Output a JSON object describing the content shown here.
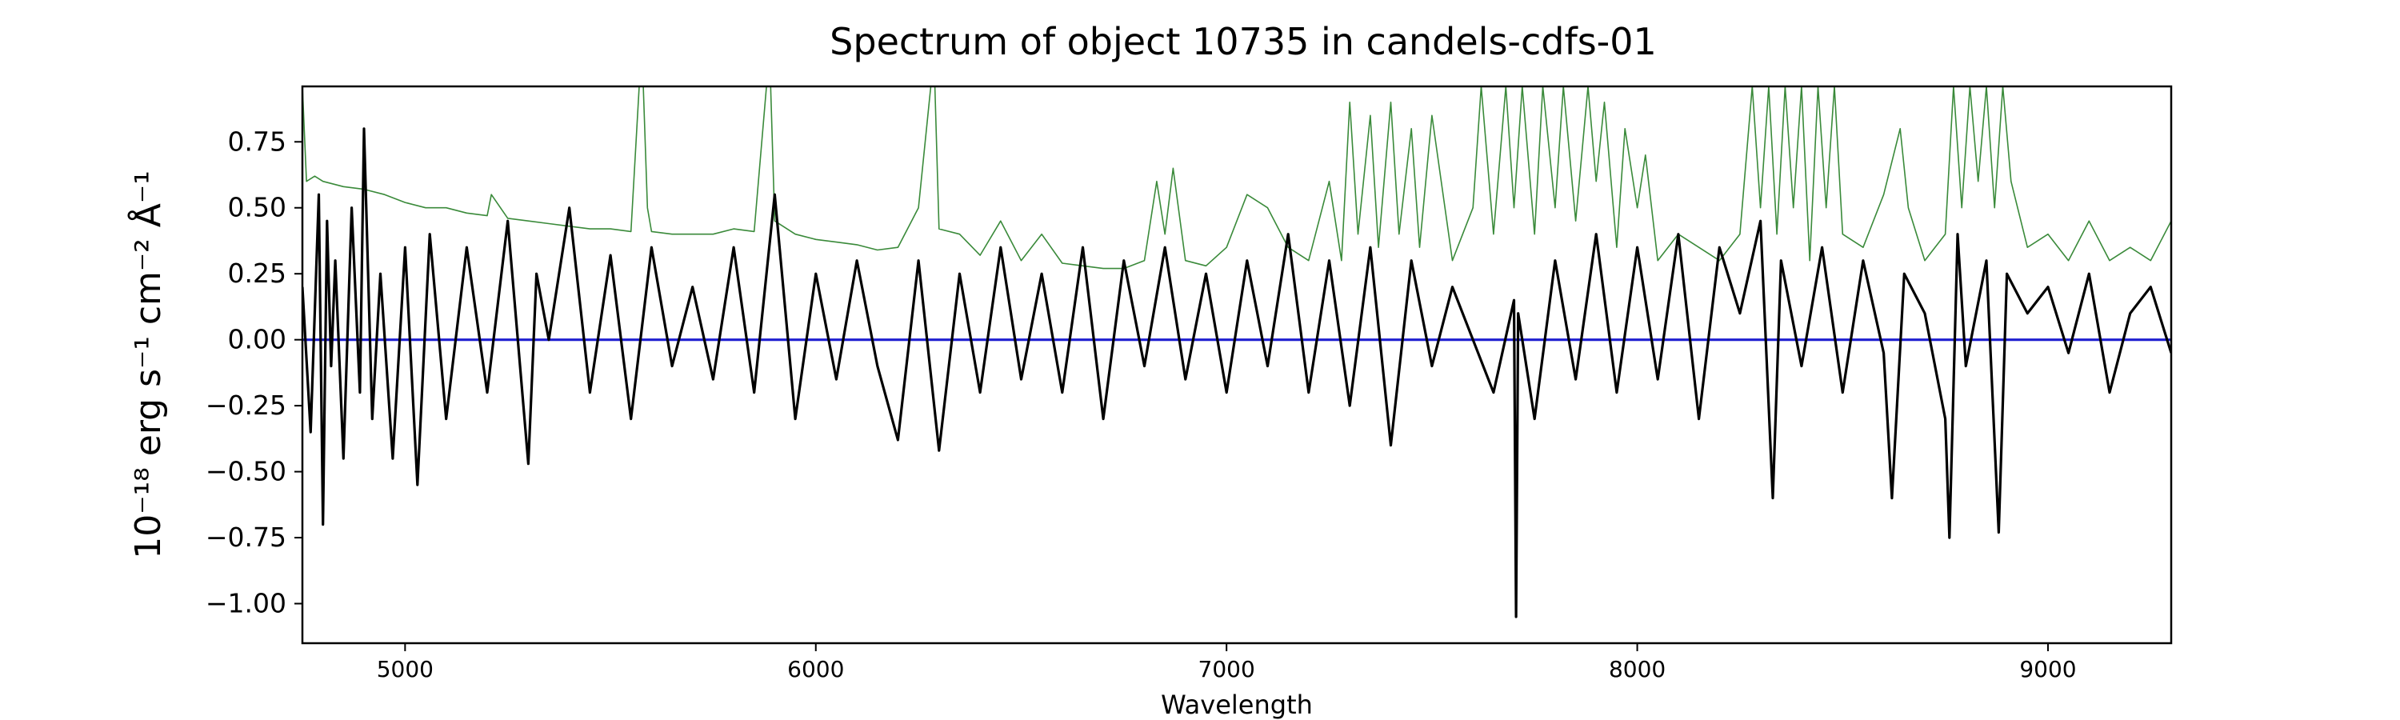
{
  "chart_data": {
    "type": "line",
    "title": "Spectrum of object 10735 in candels-cdfs-01",
    "xlabel": "Wavelength",
    "ylabel": "10⁻¹⁸ erg s⁻¹ cm⁻² Å⁻¹",
    "xlim": [
      4750,
      9300
    ],
    "ylim": [
      -1.15,
      0.96
    ],
    "x_ticks": [
      5000,
      6000,
      7000,
      8000,
      9000
    ],
    "x_tick_labels": [
      "5000",
      "6000",
      "7000",
      "8000",
      "9000"
    ],
    "y_ticks": [
      0.75,
      0.5,
      0.25,
      0.0,
      -0.25,
      -0.5,
      -0.75,
      -1.0
    ],
    "y_tick_labels": [
      "0.75",
      "0.50",
      "0.25",
      "0.00",
      "−0.25",
      "−0.50",
      "−0.75",
      "−1.00"
    ],
    "grid": false,
    "series": [
      {
        "color": "#000000",
        "style": "noisy flux spectrum",
        "x": [
          4750,
          4770,
          4790,
          4800,
          4810,
          4820,
          4830,
          4850,
          4870,
          4890,
          4900,
          4920,
          4940,
          4970,
          5000,
          5030,
          5060,
          5100,
          5150,
          5200,
          5250,
          5300,
          5320,
          5350,
          5400,
          5450,
          5500,
          5550,
          5600,
          5650,
          5700,
          5750,
          5800,
          5850,
          5900,
          5950,
          6000,
          6050,
          6100,
          6150,
          6200,
          6250,
          6300,
          6350,
          6400,
          6450,
          6500,
          6550,
          6600,
          6650,
          6700,
          6750,
          6800,
          6850,
          6900,
          6950,
          7000,
          7050,
          7100,
          7150,
          7200,
          7250,
          7300,
          7350,
          7400,
          7450,
          7500,
          7550,
          7600,
          7650,
          7700,
          7705,
          7710,
          7750,
          7800,
          7850,
          7900,
          7950,
          8000,
          8050,
          8100,
          8150,
          8200,
          8250,
          8300,
          8330,
          8350,
          8400,
          8450,
          8500,
          8550,
          8600,
          8620,
          8650,
          8700,
          8750,
          8760,
          8780,
          8800,
          8850,
          8880,
          8900,
          8950,
          9000,
          9050,
          9100,
          9150,
          9200,
          9250,
          9300
        ],
        "y": [
          0.2,
          -0.35,
          0.55,
          -0.7,
          0.45,
          -0.1,
          0.3,
          -0.45,
          0.5,
          -0.2,
          0.8,
          -0.3,
          0.25,
          -0.45,
          0.35,
          -0.55,
          0.4,
          -0.3,
          0.35,
          -0.2,
          0.45,
          -0.47,
          0.25,
          0.0,
          0.5,
          -0.2,
          0.32,
          -0.3,
          0.35,
          -0.1,
          0.2,
          -0.15,
          0.35,
          -0.2,
          0.55,
          -0.3,
          0.25,
          -0.15,
          0.3,
          -0.1,
          -0.38,
          0.3,
          -0.42,
          0.25,
          -0.2,
          0.35,
          -0.15,
          0.25,
          -0.2,
          0.35,
          -0.3,
          0.3,
          -0.1,
          0.35,
          -0.15,
          0.25,
          -0.2,
          0.3,
          -0.1,
          0.4,
          -0.2,
          0.3,
          -0.25,
          0.35,
          -0.4,
          0.3,
          -0.1,
          0.2,
          0.0,
          -0.2,
          0.15,
          -1.05,
          0.1,
          -0.3,
          0.3,
          -0.15,
          0.4,
          -0.2,
          0.35,
          -0.15,
          0.4,
          -0.3,
          0.35,
          0.1,
          0.45,
          -0.6,
          0.3,
          -0.1,
          0.35,
          -0.2,
          0.3,
          -0.05,
          -0.6,
          0.25,
          0.1,
          -0.3,
          -0.75,
          0.4,
          -0.1,
          0.3,
          -0.73,
          0.25,
          0.1,
          0.2,
          -0.05,
          0.25,
          -0.2,
          0.1,
          0.2,
          -0.05
        ]
      },
      {
        "color": "#3a8a3a",
        "style": "thin error / sky spectrum",
        "x": [
          4750,
          4760,
          4780,
          4800,
          4850,
          4900,
          4950,
          5000,
          5050,
          5100,
          5150,
          5200,
          5210,
          5250,
          5300,
          5350,
          5400,
          5450,
          5500,
          5550,
          5570,
          5580,
          5590,
          5600,
          5650,
          5700,
          5750,
          5800,
          5850,
          5880,
          5890,
          5900,
          5950,
          6000,
          6050,
          6100,
          6150,
          6200,
          6250,
          6280,
          6290,
          6300,
          6350,
          6400,
          6450,
          6500,
          6550,
          6600,
          6650,
          6700,
          6750,
          6800,
          6830,
          6850,
          6870,
          6900,
          6950,
          7000,
          7050,
          7100,
          7150,
          7200,
          7250,
          7280,
          7300,
          7320,
          7350,
          7370,
          7400,
          7420,
          7450,
          7470,
          7500,
          7550,
          7600,
          7620,
          7650,
          7680,
          7700,
          7720,
          7750,
          7770,
          7800,
          7820,
          7850,
          7880,
          7900,
          7920,
          7950,
          7970,
          8000,
          8020,
          8050,
          8100,
          8150,
          8200,
          8250,
          8280,
          8300,
          8320,
          8340,
          8360,
          8380,
          8400,
          8420,
          8440,
          8460,
          8480,
          8500,
          8550,
          8600,
          8640,
          8660,
          8700,
          8750,
          8770,
          8790,
          8810,
          8830,
          8850,
          8870,
          8890,
          8910,
          8950,
          9000,
          9050,
          9100,
          9150,
          9200,
          9250,
          9300
        ],
        "y": [
          0.96,
          0.6,
          0.62,
          0.6,
          0.58,
          0.57,
          0.55,
          0.52,
          0.5,
          0.5,
          0.48,
          0.47,
          0.55,
          0.46,
          0.45,
          0.44,
          0.43,
          0.42,
          0.42,
          0.41,
          0.96,
          0.96,
          0.5,
          0.41,
          0.4,
          0.4,
          0.4,
          0.42,
          0.41,
          0.96,
          0.96,
          0.45,
          0.4,
          0.38,
          0.37,
          0.36,
          0.34,
          0.35,
          0.5,
          0.96,
          0.96,
          0.42,
          0.4,
          0.32,
          0.45,
          0.3,
          0.4,
          0.29,
          0.28,
          0.27,
          0.27,
          0.3,
          0.6,
          0.4,
          0.65,
          0.3,
          0.28,
          0.35,
          0.55,
          0.5,
          0.35,
          0.3,
          0.6,
          0.3,
          0.9,
          0.4,
          0.85,
          0.35,
          0.9,
          0.4,
          0.8,
          0.35,
          0.85,
          0.3,
          0.5,
          0.96,
          0.4,
          0.96,
          0.5,
          0.96,
          0.4,
          0.96,
          0.5,
          0.96,
          0.45,
          0.96,
          0.6,
          0.9,
          0.35,
          0.8,
          0.5,
          0.7,
          0.3,
          0.4,
          0.35,
          0.3,
          0.4,
          0.96,
          0.5,
          0.96,
          0.4,
          0.96,
          0.5,
          0.96,
          0.3,
          0.96,
          0.5,
          0.96,
          0.4,
          0.35,
          0.55,
          0.8,
          0.5,
          0.3,
          0.4,
          0.96,
          0.5,
          0.96,
          0.6,
          0.96,
          0.5,
          0.96,
          0.6,
          0.35,
          0.4,
          0.3,
          0.45,
          0.3,
          0.35,
          0.3,
          0.45
        ]
      },
      {
        "color": "#1f1fd0",
        "style": "zero baseline",
        "x": [
          4750,
          9300
        ],
        "y": [
          0,
          0
        ]
      }
    ]
  }
}
